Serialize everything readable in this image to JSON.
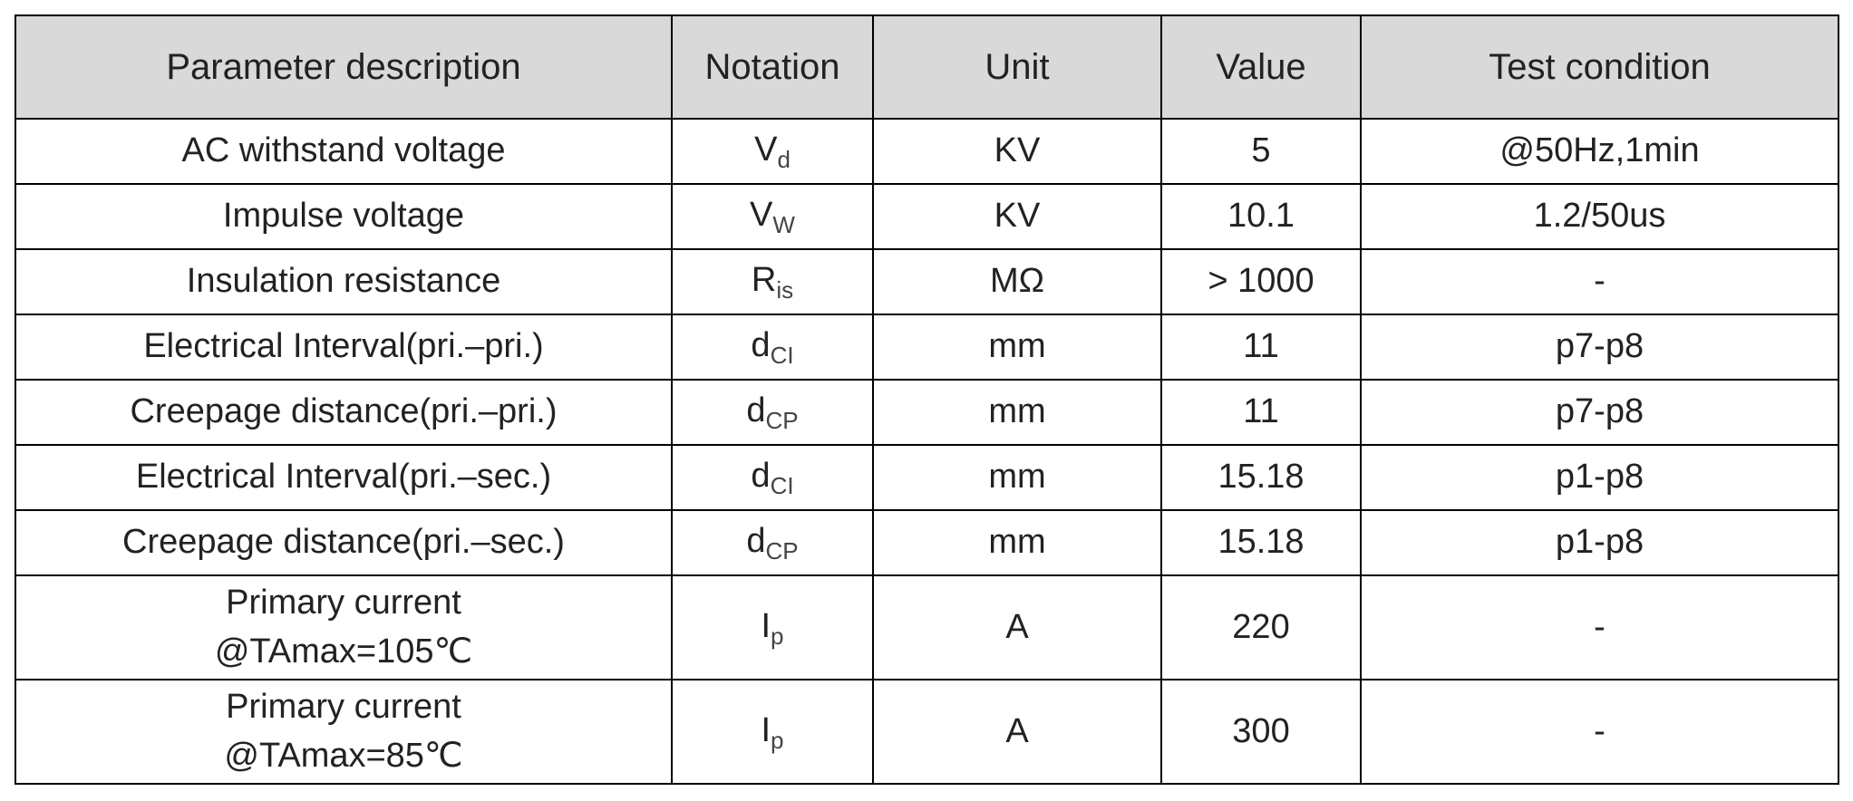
{
  "table": {
    "header": [
      "Parameter description",
      "Notation",
      "Unit",
      "Value",
      "Test condition"
    ],
    "rows": [
      [
        "AC withstand voltage",
        {
          "base": "V",
          "sub": "d"
        },
        "KV",
        "5",
        "@50Hz,1min"
      ],
      [
        "Impulse voltage",
        {
          "base": "V",
          "sub": "W"
        },
        "KV",
        "10.1",
        "1.2/50us"
      ],
      [
        "Insulation resistance",
        {
          "base": "R",
          "sub": "is"
        },
        "MΩ",
        "> 1000",
        "-"
      ],
      [
        "Electrical Interval(pri.–pri.)",
        {
          "base": "d",
          "sub": "CI"
        },
        "mm",
        "11",
        "p7-p8"
      ],
      [
        "Creepage distance(pri.–pri.)",
        {
          "base": "d",
          "sub": "CP"
        },
        "mm",
        "11",
        "p7-p8"
      ],
      [
        "Electrical Interval(pri.–sec.)",
        {
          "base": "d",
          "sub": "CI"
        },
        "mm",
        "15.18",
        "p1-p8"
      ],
      [
        "Creepage distance(pri.–sec.)",
        {
          "base": "d",
          "sub": "CP"
        },
        "mm",
        "15.18",
        "p1-p8"
      ],
      [
        [
          "Primary current",
          "@TAmax=105℃"
        ],
        {
          "base": "I",
          "sub": "p"
        },
        "A",
        "220",
        "-"
      ],
      [
        [
          "Primary current",
          "@TAmax=85℃"
        ],
        {
          "base": "I",
          "sub": "p"
        },
        "A",
        "300",
        "-"
      ]
    ]
  }
}
